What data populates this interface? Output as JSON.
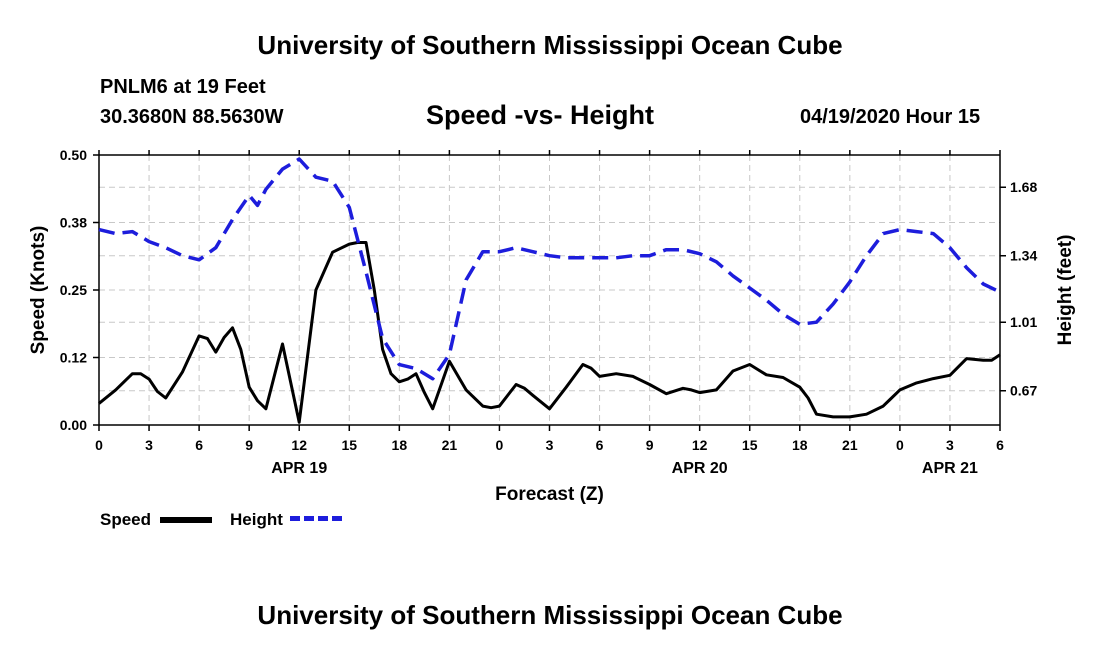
{
  "page": {
    "header_title": "University of Southern Mississippi Ocean Cube",
    "footer_title": "University of Southern Mississippi Ocean Cube",
    "station_name": "PNLM6 at 19 Feet",
    "station_coords": "30.3680N 88.5630W",
    "chart_title": "Speed -vs- Height",
    "chart_time": "04/19/2020 Hour 15"
  },
  "legend": {
    "speed_label": "Speed",
    "height_label": "Height"
  },
  "chart_data": {
    "type": "line",
    "title": "Speed -vs- Height",
    "xlabel": "Forecast (Z)",
    "ylabel": "Speed (Knots)",
    "y2label": "Height (feet)",
    "x_range": [
      0,
      54
    ],
    "ylim": [
      0.0,
      0.5
    ],
    "y2lim": [
      0.5,
      1.84
    ],
    "x_ticks": [
      0,
      3,
      6,
      9,
      12,
      15,
      18,
      21,
      24,
      27,
      30,
      33,
      36,
      39,
      42,
      45,
      48,
      51,
      54
    ],
    "x_tick_labels": [
      "0",
      "3",
      "6",
      "9",
      "12",
      "15",
      "18",
      "21",
      "0",
      "3",
      "6",
      "9",
      "12",
      "15",
      "18",
      "21",
      "0",
      "3",
      "6"
    ],
    "date_labels": [
      {
        "x": 12,
        "label": "APR 19"
      },
      {
        "x": 36,
        "label": "APR 20"
      },
      {
        "x": 51,
        "label": "APR 21"
      }
    ],
    "y_ticks": [
      0.0,
      0.125,
      0.25,
      0.375,
      0.5
    ],
    "y_tick_labels": [
      "0.00",
      "0.12",
      "0.25",
      "0.38",
      "0.50"
    ],
    "y2_ticks": [
      0.67,
      1.01,
      1.34,
      1.68
    ],
    "y2_tick_labels": [
      "0.67",
      "1.01",
      "1.34",
      "1.68"
    ],
    "grid": true,
    "colors": {
      "speed": "#000000",
      "height": "#1d1ddc"
    },
    "series": [
      {
        "name": "Speed",
        "axis": "left",
        "x": [
          0,
          1,
          2,
          2.5,
          3,
          3.5,
          4,
          5,
          6,
          6.5,
          7,
          7.5,
          8,
          8.5,
          9,
          9.5,
          10,
          11,
          12,
          13,
          14,
          15,
          15.5,
          16,
          16.5,
          17,
          17.5,
          18,
          18.5,
          19,
          19.5,
          20,
          21,
          22,
          23,
          23.5,
          24,
          25,
          25.5,
          26,
          27,
          28,
          29,
          29.5,
          30,
          31,
          32,
          33,
          34,
          35,
          35.5,
          36,
          37,
          38,
          39,
          40,
          41,
          42,
          42.5,
          43,
          44,
          45,
          46,
          47,
          48,
          49,
          50,
          51,
          52,
          53,
          53.5,
          54
        ],
        "values": [
          0.04,
          0.065,
          0.095,
          0.095,
          0.085,
          0.062,
          0.05,
          0.098,
          0.165,
          0.16,
          0.135,
          0.162,
          0.18,
          0.14,
          0.07,
          0.045,
          0.03,
          0.15,
          0.005,
          0.25,
          0.32,
          0.335,
          0.338,
          0.338,
          0.25,
          0.14,
          0.095,
          0.08,
          0.085,
          0.095,
          0.06,
          0.03,
          0.118,
          0.065,
          0.035,
          0.032,
          0.035,
          0.075,
          0.068,
          0.055,
          0.03,
          0.07,
          0.112,
          0.105,
          0.09,
          0.095,
          0.09,
          0.075,
          0.058,
          0.068,
          0.065,
          0.06,
          0.065,
          0.1,
          0.112,
          0.093,
          0.088,
          0.07,
          0.05,
          0.02,
          0.015,
          0.015,
          0.02,
          0.035,
          0.065,
          0.078,
          0.086,
          0.092,
          0.123,
          0.12,
          0.12,
          0.13
        ]
      },
      {
        "name": "Height",
        "axis": "right",
        "x": [
          0,
          1,
          2,
          3,
          4,
          5,
          6,
          7,
          8,
          9,
          9.5,
          10,
          11,
          12,
          13,
          14,
          15,
          16,
          17,
          18,
          19,
          20,
          21,
          22,
          23,
          24,
          25,
          26,
          27,
          28,
          29,
          30,
          31,
          32,
          33,
          34,
          35,
          36,
          37,
          38,
          39,
          40,
          41,
          42,
          43,
          44,
          45,
          46,
          47,
          48,
          49,
          50,
          51,
          52,
          53,
          54
        ],
        "values": [
          1.47,
          1.45,
          1.46,
          1.41,
          1.38,
          1.34,
          1.32,
          1.38,
          1.52,
          1.64,
          1.59,
          1.67,
          1.77,
          1.82,
          1.73,
          1.71,
          1.58,
          1.26,
          0.93,
          0.8,
          0.78,
          0.73,
          0.85,
          1.22,
          1.36,
          1.36,
          1.38,
          1.36,
          1.34,
          1.33,
          1.33,
          1.33,
          1.33,
          1.34,
          1.34,
          1.37,
          1.37,
          1.35,
          1.31,
          1.24,
          1.18,
          1.12,
          1.05,
          1.0,
          1.01,
          1.1,
          1.21,
          1.34,
          1.45,
          1.47,
          1.46,
          1.45,
          1.38,
          1.28,
          1.2,
          1.16
        ]
      }
    ]
  }
}
